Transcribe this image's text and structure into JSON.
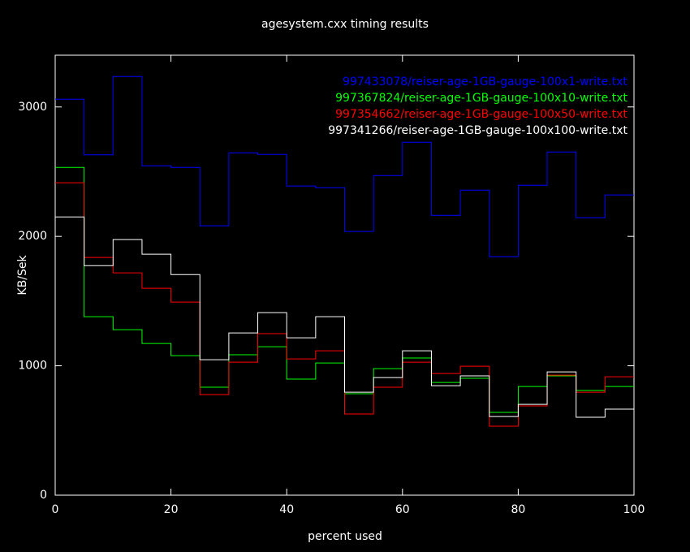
{
  "chart_data": {
    "type": "step",
    "title": "agesystem.cxx timing results",
    "xlabel": "percent used",
    "ylabel": "KB/Sek",
    "x": [
      0,
      5,
      10,
      15,
      20,
      25,
      30,
      35,
      40,
      45,
      50,
      55,
      60,
      65,
      70,
      75,
      80,
      85,
      90,
      95
    ],
    "xlim": [
      0,
      100
    ],
    "ylim": [
      0,
      3400
    ],
    "xticks": [
      0,
      20,
      40,
      60,
      80,
      100
    ],
    "yticks": [
      0,
      1000,
      2000,
      3000
    ],
    "legend": "top-right",
    "series": [
      {
        "name": "997433078/reiser-age-1GB-gauge-100x1-write.txt",
        "color": "#0000ff",
        "values": [
          3060,
          2630,
          3235,
          2545,
          2533,
          2082,
          2646,
          2633,
          2389,
          2376,
          2038,
          2470,
          2727,
          2163,
          2357,
          1843,
          2395,
          2652,
          2144,
          2320
        ]
      },
      {
        "name": "997367824/reiser-age-1GB-gauge-100x10-write.txt",
        "color": "#00ff00",
        "values": [
          2533,
          1379,
          1279,
          1172,
          1078,
          834,
          1085,
          1147,
          897,
          1022,
          784,
          978,
          1060,
          871,
          903,
          640,
          840,
          922,
          809,
          840
        ]
      },
      {
        "name": "997354662/reiser-age-1GB-gauge-100x50-write.txt",
        "color": "#ff0000",
        "values": [
          2414,
          1837,
          1718,
          1599,
          1492,
          777,
          1028,
          1248,
          1053,
          1116,
          627,
          834,
          1028,
          940,
          997,
          533,
          690,
          928,
          796,
          915
        ]
      },
      {
        "name": "997341266/reiser-age-1GB-gauge-100x100-write.txt",
        "color": "#ffffff",
        "values": [
          2150,
          1774,
          1975,
          1862,
          1705,
          1047,
          1254,
          1411,
          1216,
          1379,
          796,
          909,
          1116,
          846,
          922,
          608,
          702,
          953,
          602,
          665
        ]
      }
    ]
  }
}
